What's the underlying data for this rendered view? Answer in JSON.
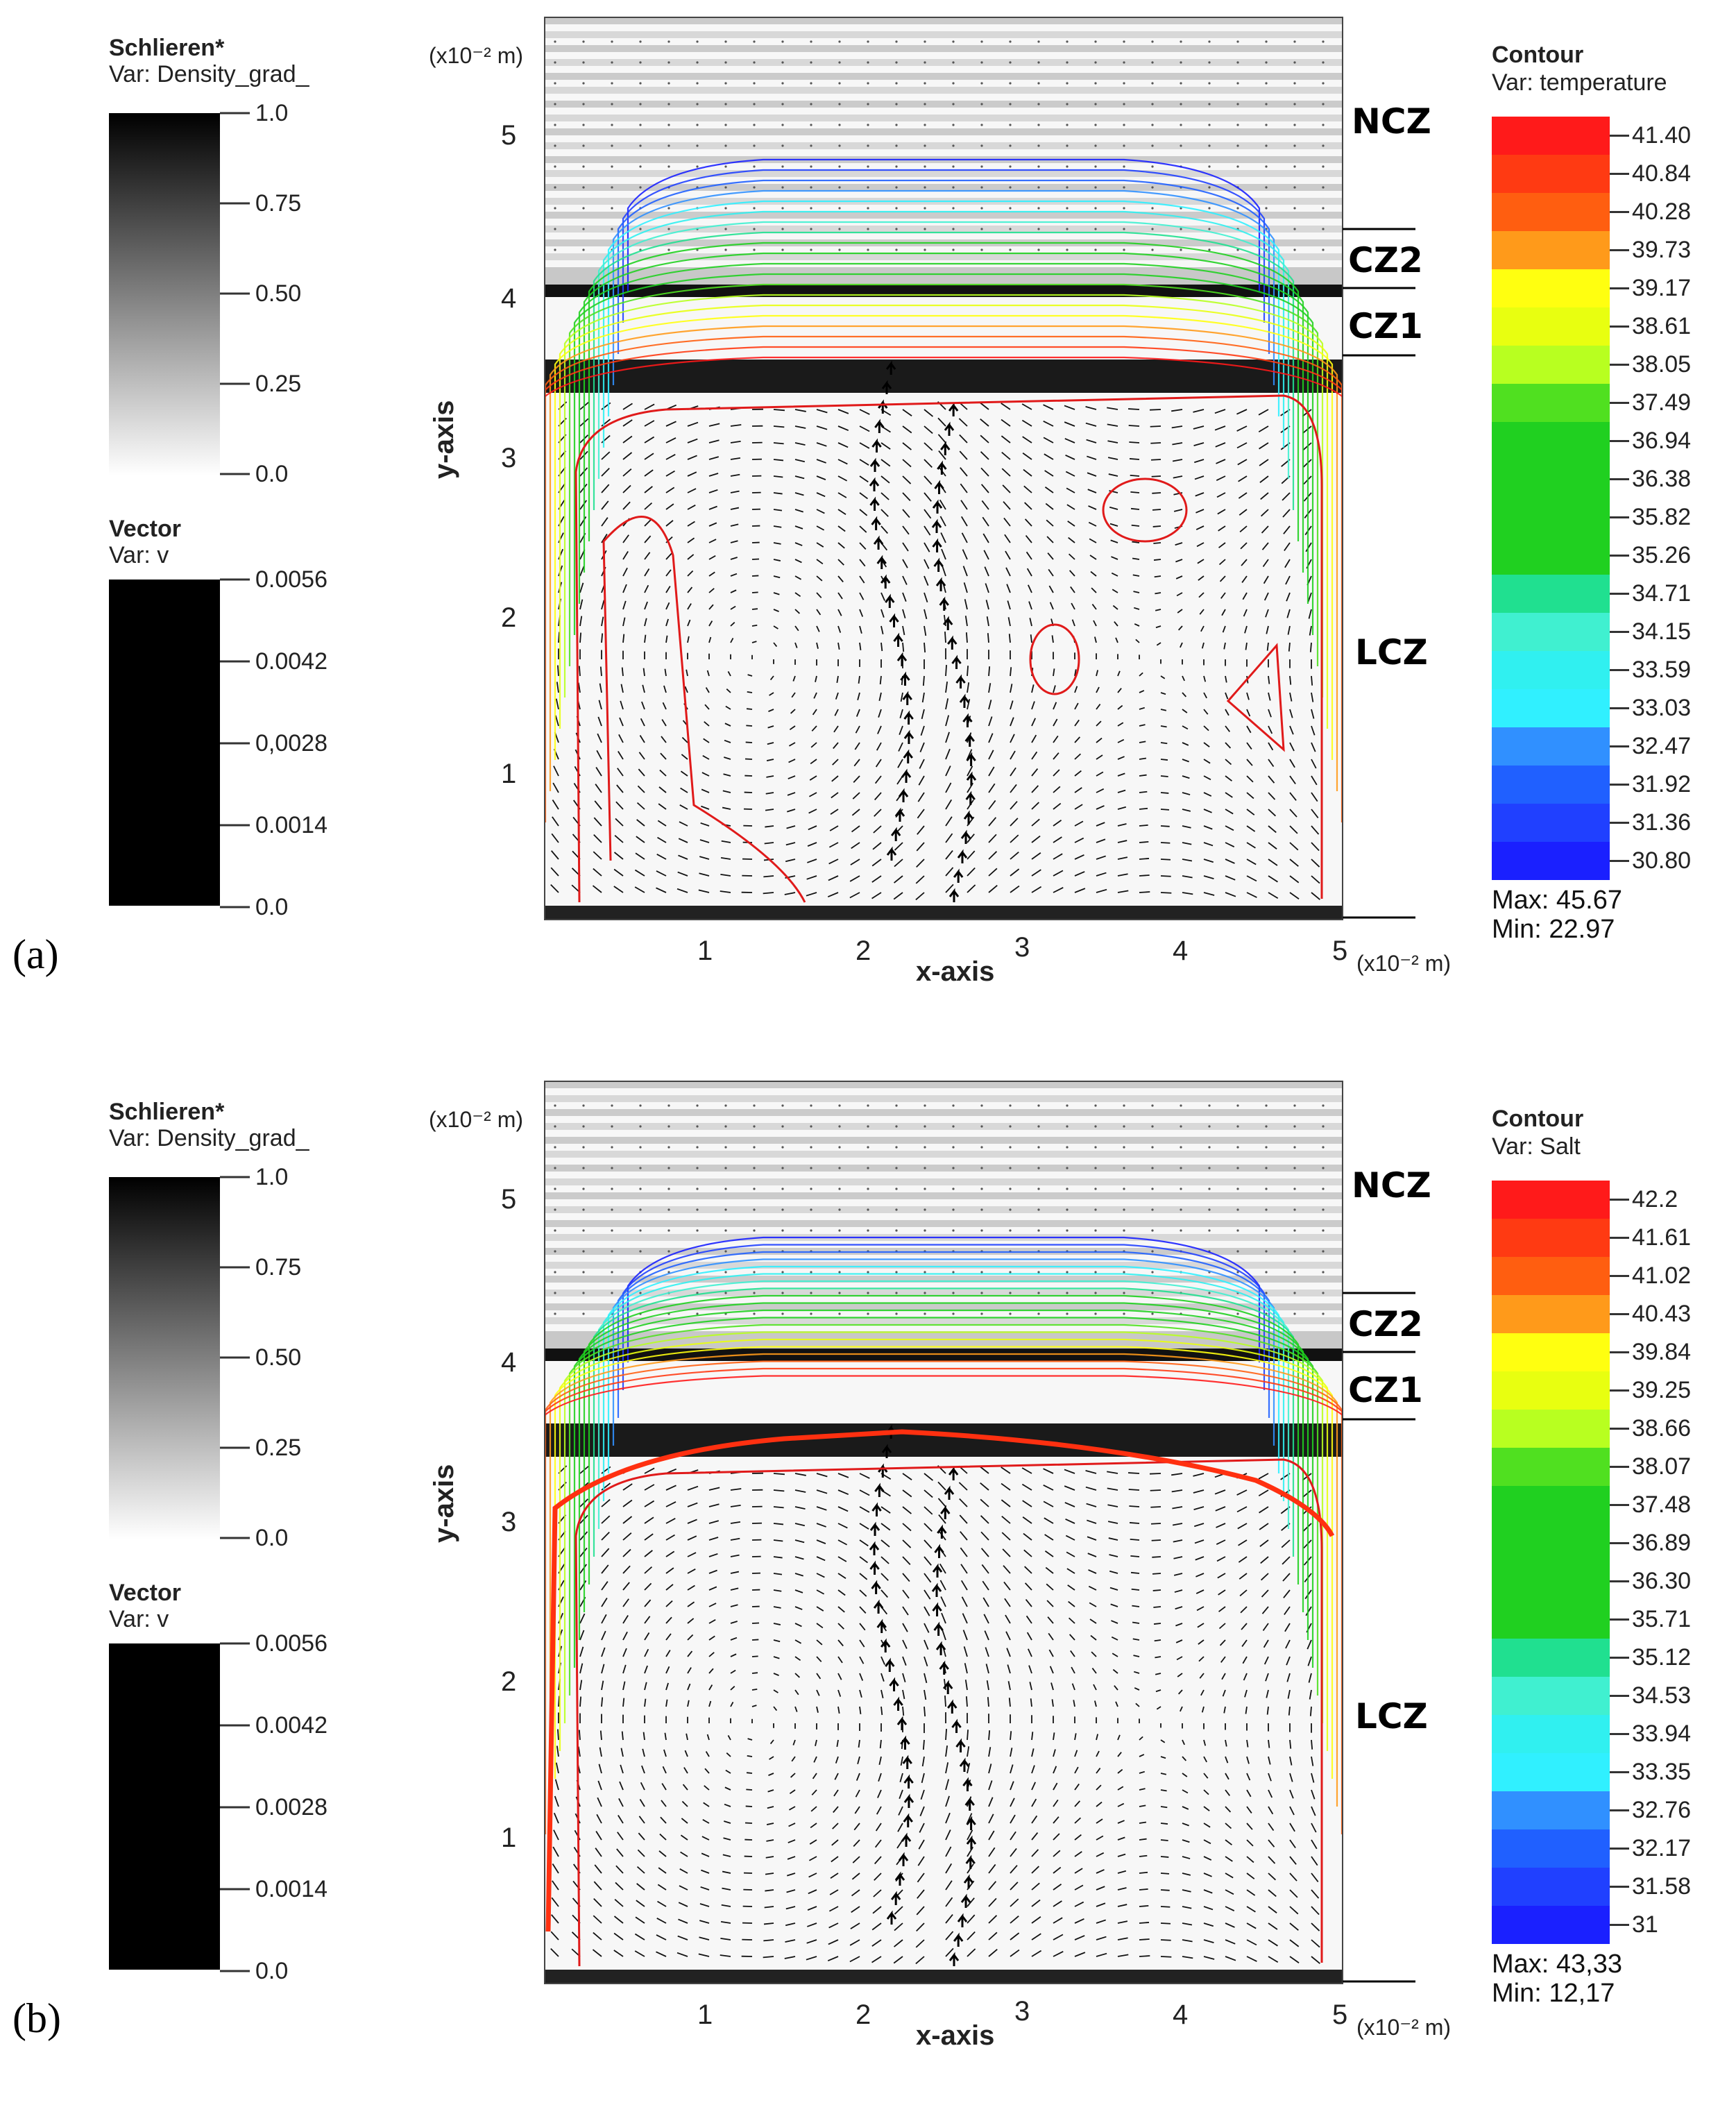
{
  "panels": [
    {
      "label": "(a)",
      "schlieren": {
        "title": "Schlieren*",
        "var": "Var: Density_grad_",
        "ticks": [
          "1.0",
          "0.75",
          "0.50",
          "0.25",
          "0.0"
        ]
      },
      "vector": {
        "title": "Vector",
        "var": "Var: v",
        "ticks": [
          "0.0056",
          "0.0042",
          "0,0028",
          "0.0014",
          "0.0"
        ]
      },
      "contour": {
        "title": "Contour",
        "var": "Var: temperature",
        "ticks": [
          "41.40",
          "40.84",
          "40.28",
          "39.73",
          "39.17",
          "38.61",
          "38.05",
          "37.49",
          "36.94",
          "36.38",
          "35.82",
          "35.26",
          "34.71",
          "34.15",
          "33.59",
          "33.03",
          "32.47",
          "31.92",
          "31.36",
          "30.80"
        ],
        "max": "Max:  45.67",
        "min": "Min:  22.97"
      },
      "axes": {
        "y_unit": "(x10⁻² m)",
        "x_unit": "(x10⁻² m)",
        "y_label": "y-axis",
        "x_label": "x-axis",
        "y_ticks": [
          "5",
          "4",
          "3",
          "2",
          "1"
        ],
        "x_ticks": [
          "1",
          "2",
          "3",
          "4",
          "5"
        ]
      },
      "zones": [
        "NCZ",
        "CZ2",
        "CZ1",
        "LCZ"
      ]
    },
    {
      "label": "(b)",
      "schlieren": {
        "title": "Schlieren*",
        "var": "Var: Density_grad_",
        "ticks": [
          "1.0",
          "0.75",
          "0.50",
          "0.25",
          "0.0"
        ]
      },
      "vector": {
        "title": "Vector",
        "var": "Var: v",
        "ticks": [
          "0.0056",
          "0.0042",
          "0.0028",
          "0.0014",
          "0.0"
        ]
      },
      "contour": {
        "title": "Contour",
        "var": "Var: Salt",
        "ticks": [
          "42.2",
          "41.61",
          "41.02",
          "40.43",
          "39.84",
          "39.25",
          "38.66",
          "38.07",
          "37.48",
          "36.89",
          "36.30",
          "35.71",
          "35.12",
          "34.53",
          "33.94",
          "33.35",
          "32.76",
          "32.17",
          "31.58",
          "31"
        ],
        "max": "Max:  43,33",
        "min": "Min:  12,17"
      },
      "axes": {
        "y_unit": "(x10⁻² m)",
        "x_unit": "(x10⁻² m)",
        "y_label": "y-axis",
        "x_label": "x-axis",
        "y_ticks": [
          "5",
          "4",
          "3",
          "2",
          "1"
        ],
        "x_ticks": [
          "1",
          "2",
          "3",
          "4",
          "5"
        ]
      },
      "zones": [
        "NCZ",
        "CZ2",
        "CZ1",
        "LCZ"
      ]
    }
  ],
  "palette": [
    "#ff1a1a",
    "#ff3a12",
    "#ff5e10",
    "#ff9a1a",
    "#ffff10",
    "#e8ff10",
    "#b8ff20",
    "#50e020",
    "#20d020",
    "#20d020",
    "#20d020",
    "#20d020",
    "#20e090",
    "#40f0d0",
    "#30f0f0",
    "#30f0ff",
    "#3090ff",
    "#2060ff",
    "#2040ff",
    "#1a20ff"
  ]
}
